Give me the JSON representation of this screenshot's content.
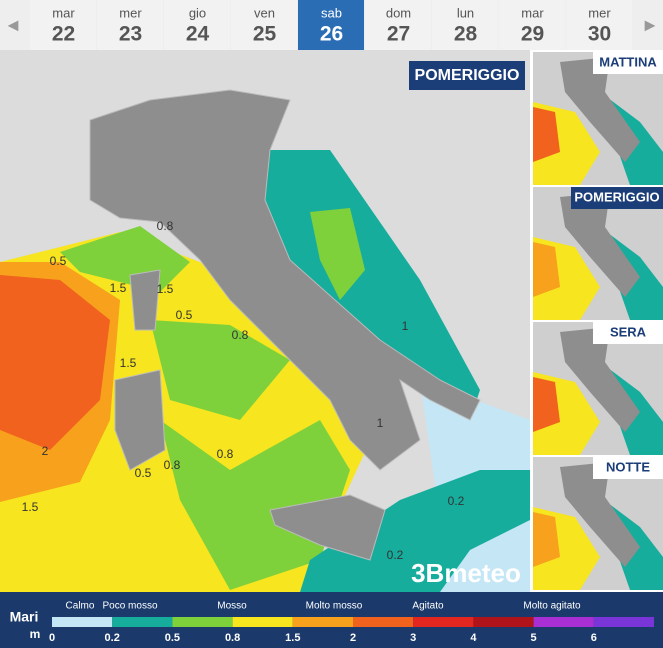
{
  "days": [
    {
      "weekday": "mar",
      "day": "22"
    },
    {
      "weekday": "mer",
      "day": "23"
    },
    {
      "weekday": "gio",
      "day": "24"
    },
    {
      "weekday": "ven",
      "day": "25"
    },
    {
      "weekday": "sab",
      "day": "26"
    },
    {
      "weekday": "dom",
      "day": "27"
    },
    {
      "weekday": "lun",
      "day": "28"
    },
    {
      "weekday": "mar",
      "day": "29"
    },
    {
      "weekday": "mer",
      "day": "30"
    }
  ],
  "selected_day": 4,
  "main_map": {
    "period": "POMERIGGIO",
    "logo": "3Bmeteo",
    "contour_labels": [
      "0.8",
      "1.5",
      "1.5",
      "0.5",
      "0.5",
      "1.5",
      "0.8",
      "2",
      "0.5",
      "0.8",
      "0.8",
      "1.5",
      "1",
      "0.2",
      "0.2",
      "1"
    ]
  },
  "thumbnails": [
    "MATTINA",
    "POMERIGGIO",
    "SERA",
    "NOTTE"
  ],
  "selected_thumbnail": 1,
  "legend": {
    "title": "Mari",
    "unit": "m",
    "classes": [
      "Calmo",
      "Poco mosso",
      "Mosso",
      "Molto mosso",
      "Agitato",
      "Molto agitato"
    ],
    "ticks": [
      "0",
      "0.2",
      "0.5",
      "0.8",
      "1.5",
      "2",
      "3",
      "4",
      "5",
      "6"
    ],
    "colors": [
      "#c4e6f5",
      "#17ad9c",
      "#7fd13b",
      "#f6e51f",
      "#f7a11c",
      "#f0621d",
      "#e3261f",
      "#b1131a",
      "#a82fd3",
      "#7a35d8"
    ]
  }
}
